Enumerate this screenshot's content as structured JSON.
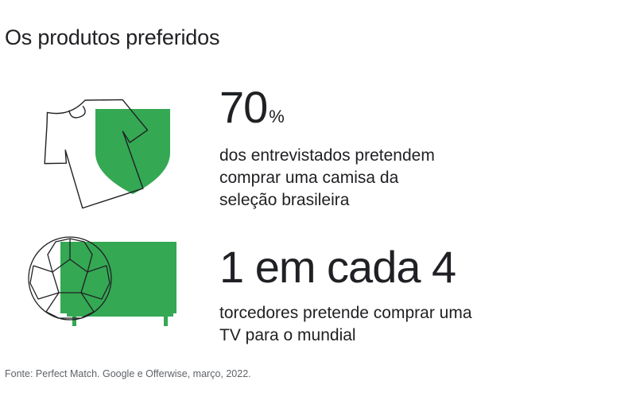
{
  "header": {
    "title": "Os produtos preferidos"
  },
  "stats": [
    {
      "value": "70",
      "suffix": "%",
      "description": "dos entrevistados pretendem comprar uma camisa da seleção brasileira",
      "icon": "shirt-shield-icon"
    },
    {
      "value": "1 em cada 4",
      "suffix": "",
      "description": "torcedores pretende comprar uma TV para o mundial",
      "icon": "ball-tv-icon"
    }
  ],
  "footer": {
    "source": "Fonte: Perfect Match. Google e Offerwise, março, 2022."
  },
  "colors": {
    "accent_green": "#34a853",
    "text": "#202124",
    "muted_text": "#5f6368",
    "outline": "#202124"
  }
}
